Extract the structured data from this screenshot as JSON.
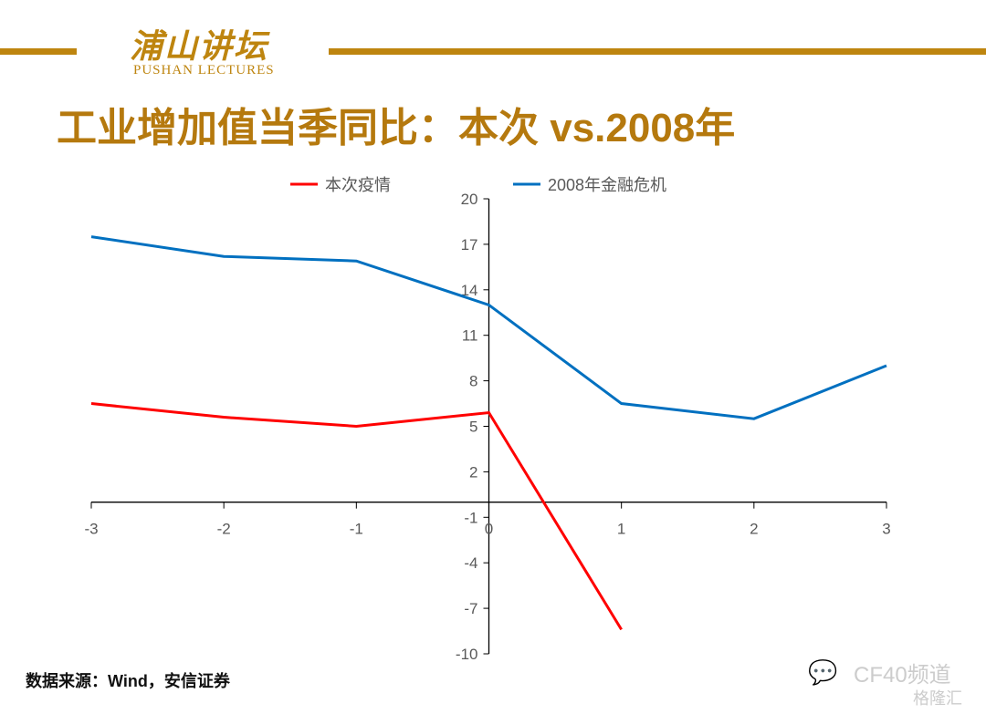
{
  "header": {
    "logo_cn": "浦山讲坛",
    "logo_en": "PUSHAN LECTURES",
    "title": "工业增加值当季同比：本次 vs.2008年"
  },
  "footer": {
    "source": "数据来源：Wind，安信证券",
    "watermark": "CF40频道",
    "watermark2": "格隆汇"
  },
  "colors": {
    "gold": "#BE850F",
    "red": "#FF0000",
    "blue": "#0070C0"
  },
  "chart_data": {
    "type": "line",
    "x": [
      -3,
      -2,
      -1,
      0,
      1,
      2,
      3
    ],
    "xticks": [
      "-3",
      "-2",
      "-1",
      "0",
      "1",
      "2",
      "3"
    ],
    "yticks": [
      "20",
      "17",
      "14",
      "11",
      "8",
      "5",
      "2",
      "-1",
      "-4",
      "-7",
      "-10"
    ],
    "ylim": [
      -10,
      20
    ],
    "xlim": [
      -3,
      3
    ],
    "legend_position": "top",
    "series": [
      {
        "name": "本次疫情",
        "color": "#FF0000",
        "values": [
          6.5,
          5.6,
          5.0,
          5.9,
          -8.4,
          null,
          null
        ]
      },
      {
        "name": "2008年金融危机",
        "color": "#0070C0",
        "values": [
          17.5,
          16.2,
          15.9,
          13.0,
          6.5,
          5.5,
          9.0
        ]
      }
    ]
  }
}
